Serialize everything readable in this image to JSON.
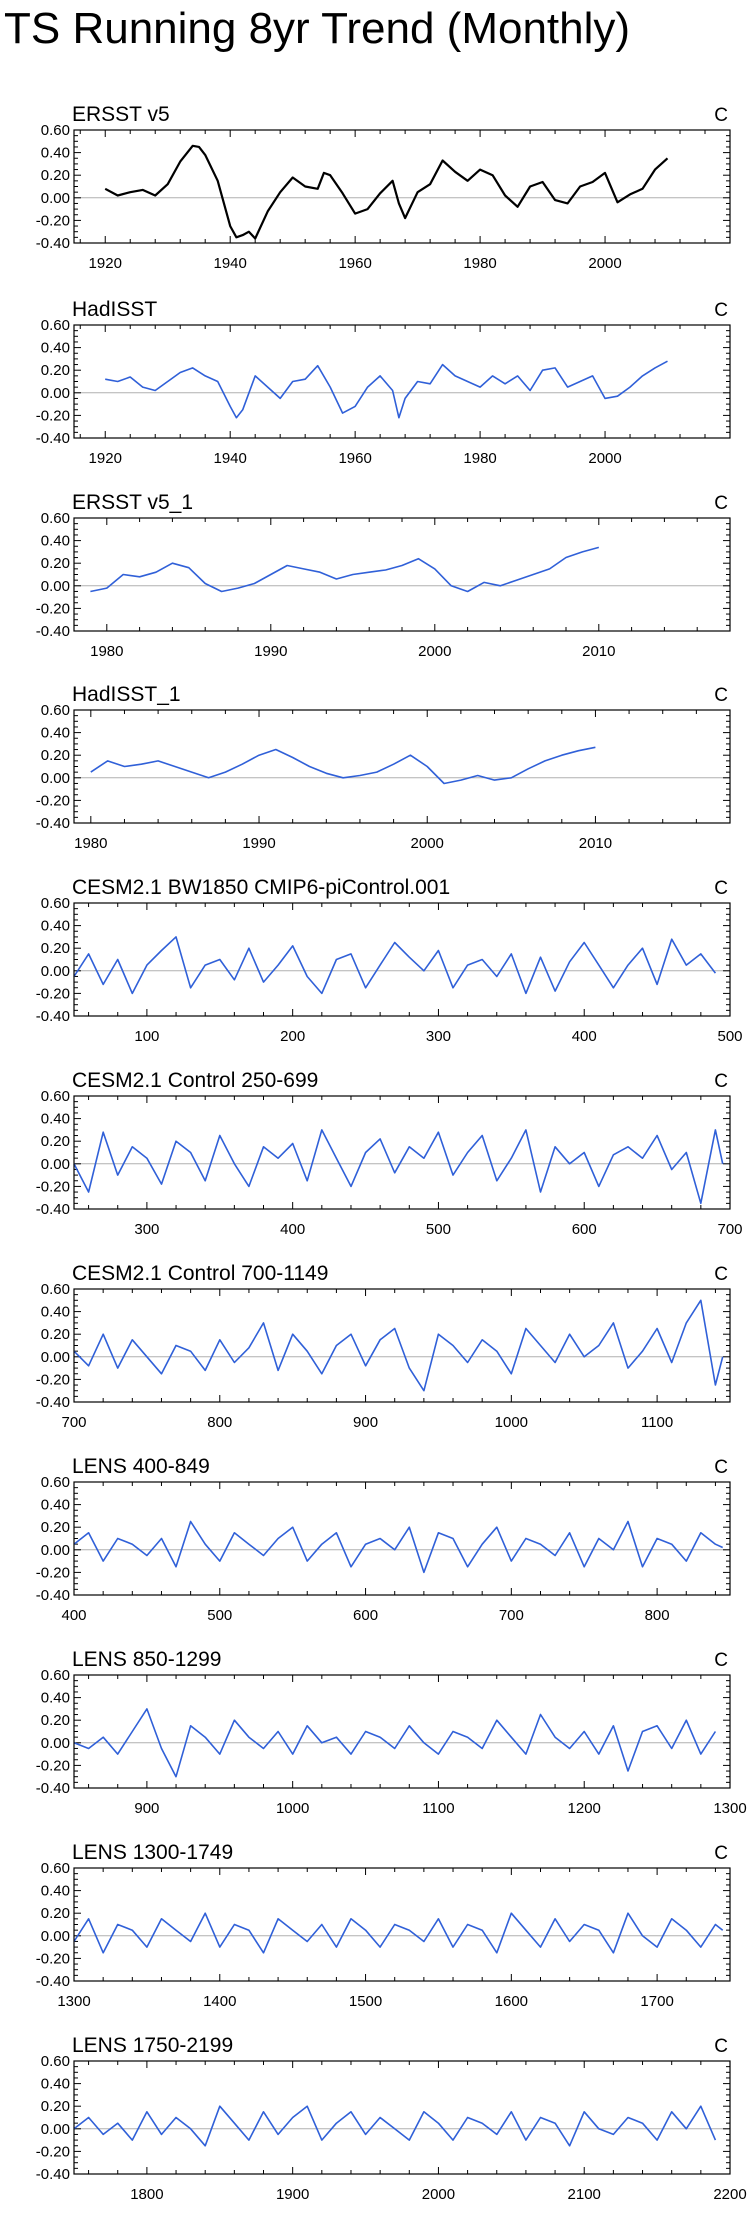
{
  "title": "TS Running 8yr Trend (Monthly)",
  "chart_data": [
    {
      "type": "line",
      "title": "ERSST v5",
      "units": "C",
      "color": "#000000",
      "xlim": [
        1915,
        2020
      ],
      "ylim": [
        -0.4,
        0.6
      ],
      "yticks": [
        "0.60",
        "0.40",
        "0.20",
        "0.00",
        "-0.20",
        "-0.40"
      ],
      "xticks": [
        1920,
        1940,
        1960,
        1980,
        2000
      ],
      "x": [
        1920,
        1922,
        1924,
        1926,
        1928,
        1930,
        1932,
        1934,
        1935,
        1936,
        1938,
        1940,
        1941,
        1942,
        1943,
        1944,
        1946,
        1948,
        1950,
        1952,
        1954,
        1955,
        1956,
        1958,
        1960,
        1962,
        1964,
        1966,
        1967,
        1968,
        1970,
        1972,
        1974,
        1976,
        1978,
        1980,
        1982,
        1984,
        1986,
        1988,
        1990,
        1992,
        1994,
        1996,
        1998,
        2000,
        2002,
        2004,
        2006,
        2008,
        2010
      ],
      "values": [
        0.08,
        0.02,
        0.05,
        0.07,
        0.02,
        0.12,
        0.32,
        0.46,
        0.45,
        0.38,
        0.15,
        -0.25,
        -0.35,
        -0.33,
        -0.3,
        -0.36,
        -0.12,
        0.05,
        0.18,
        0.1,
        0.08,
        0.22,
        0.2,
        0.04,
        -0.14,
        -0.1,
        0.04,
        0.15,
        -0.05,
        -0.18,
        0.05,
        0.12,
        0.33,
        0.23,
        0.15,
        0.25,
        0.2,
        0.02,
        -0.08,
        0.1,
        0.14,
        -0.02,
        -0.05,
        0.1,
        0.14,
        0.22,
        -0.04,
        0.03,
        0.08,
        0.25,
        0.35
      ]
    },
    {
      "type": "line",
      "title": "HadISST",
      "units": "C",
      "color": "#3060d8",
      "xlim": [
        1915,
        2020
      ],
      "ylim": [
        -0.4,
        0.6
      ],
      "yticks": [
        "0.60",
        "0.40",
        "0.20",
        "0.00",
        "-0.20",
        "-0.40"
      ],
      "xticks": [
        1920,
        1940,
        1960,
        1980,
        2000
      ],
      "x": [
        1920,
        1922,
        1924,
        1926,
        1928,
        1930,
        1932,
        1934,
        1936,
        1938,
        1940,
        1941,
        1942,
        1944,
        1946,
        1948,
        1950,
        1952,
        1954,
        1956,
        1958,
        1960,
        1962,
        1964,
        1966,
        1967,
        1968,
        1970,
        1972,
        1974,
        1976,
        1978,
        1980,
        1982,
        1984,
        1986,
        1988,
        1990,
        1992,
        1994,
        1996,
        1998,
        2000,
        2002,
        2004,
        2006,
        2008,
        2010
      ],
      "values": [
        0.12,
        0.1,
        0.14,
        0.05,
        0.02,
        0.1,
        0.18,
        0.22,
        0.15,
        0.1,
        -0.12,
        -0.22,
        -0.15,
        0.15,
        0.05,
        -0.05,
        0.1,
        0.12,
        0.24,
        0.05,
        -0.18,
        -0.12,
        0.05,
        0.15,
        0.02,
        -0.22,
        -0.05,
        0.1,
        0.08,
        0.25,
        0.15,
        0.1,
        0.05,
        0.15,
        0.08,
        0.15,
        0.02,
        0.2,
        0.22,
        0.05,
        0.1,
        0.15,
        -0.05,
        -0.03,
        0.05,
        0.15,
        0.22,
        0.28
      ]
    },
    {
      "type": "line",
      "title": "ERSST v5_1",
      "units": "C",
      "color": "#3060d8",
      "xlim": [
        1978,
        2018
      ],
      "ylim": [
        -0.4,
        0.6
      ],
      "yticks": [
        "0.60",
        "0.40",
        "0.20",
        "0.00",
        "-0.20",
        "-0.40"
      ],
      "xticks": [
        1980,
        1990,
        2000,
        2010
      ],
      "x": [
        1979,
        1980,
        1981,
        1982,
        1983,
        1984,
        1985,
        1986,
        1987,
        1988,
        1989,
        1990,
        1991,
        1992,
        1993,
        1994,
        1995,
        1996,
        1997,
        1998,
        1999,
        2000,
        2001,
        2002,
        2003,
        2004,
        2005,
        2006,
        2007,
        2008,
        2009,
        2010
      ],
      "values": [
        -0.05,
        -0.02,
        0.1,
        0.08,
        0.12,
        0.2,
        0.16,
        0.02,
        -0.05,
        -0.02,
        0.02,
        0.1,
        0.18,
        0.15,
        0.12,
        0.06,
        0.1,
        0.12,
        0.14,
        0.18,
        0.24,
        0.15,
        0.0,
        -0.05,
        0.03,
        0.0,
        0.05,
        0.1,
        0.15,
        0.25,
        0.3,
        0.34
      ]
    },
    {
      "type": "line",
      "title": "HadISST_1",
      "units": "C",
      "color": "#3060d8",
      "xlim": [
        1979,
        2018
      ],
      "ylim": [
        -0.4,
        0.6
      ],
      "yticks": [
        "0.60",
        "0.40",
        "0.20",
        "0.00",
        "-0.20",
        "-0.40"
      ],
      "xticks": [
        1980,
        1990,
        2000,
        2010
      ],
      "x": [
        1980,
        1981,
        1982,
        1983,
        1984,
        1985,
        1986,
        1987,
        1988,
        1989,
        1990,
        1991,
        1992,
        1993,
        1994,
        1995,
        1996,
        1997,
        1998,
        1999,
        2000,
        2001,
        2002,
        2003,
        2004,
        2005,
        2006,
        2007,
        2008,
        2009,
        2010
      ],
      "values": [
        0.05,
        0.15,
        0.1,
        0.12,
        0.15,
        0.1,
        0.05,
        0.0,
        0.05,
        0.12,
        0.2,
        0.25,
        0.18,
        0.1,
        0.04,
        0.0,
        0.02,
        0.05,
        0.12,
        0.2,
        0.1,
        -0.05,
        -0.02,
        0.02,
        -0.02,
        0.0,
        0.08,
        0.15,
        0.2,
        0.24,
        0.27
      ]
    },
    {
      "type": "line",
      "title": "CESM2.1 BW1850 CMIP6-piControl.001",
      "units": "C",
      "color": "#3060d8",
      "xlim": [
        50,
        500
      ],
      "ylim": [
        -0.4,
        0.6
      ],
      "yticks": [
        "0.60",
        "0.40",
        "0.20",
        "0.00",
        "-0.20",
        "-0.40"
      ],
      "xticks": [
        100,
        200,
        300,
        400,
        500
      ],
      "x": [
        50,
        60,
        70,
        80,
        90,
        100,
        110,
        120,
        130,
        140,
        150,
        160,
        170,
        180,
        190,
        200,
        210,
        220,
        230,
        240,
        250,
        260,
        270,
        280,
        290,
        300,
        310,
        320,
        330,
        340,
        350,
        360,
        370,
        380,
        390,
        400,
        410,
        420,
        430,
        440,
        450,
        460,
        470,
        480,
        490
      ],
      "values": [
        -0.05,
        0.15,
        -0.12,
        0.1,
        -0.2,
        0.05,
        0.18,
        0.3,
        -0.15,
        0.05,
        0.1,
        -0.08,
        0.2,
        -0.1,
        0.05,
        0.22,
        -0.05,
        -0.2,
        0.1,
        0.15,
        -0.15,
        0.05,
        0.25,
        0.12,
        0.0,
        0.18,
        -0.15,
        0.05,
        0.1,
        -0.05,
        0.15,
        -0.2,
        0.12,
        -0.18,
        0.08,
        0.25,
        0.05,
        -0.15,
        0.05,
        0.2,
        -0.12,
        0.28,
        0.05,
        0.15,
        -0.02
      ]
    },
    {
      "type": "line",
      "title": "CESM2.1 Control 250-699",
      "units": "C",
      "color": "#3060d8",
      "xlim": [
        250,
        700
      ],
      "ylim": [
        -0.4,
        0.6
      ],
      "yticks": [
        "0.60",
        "0.40",
        "0.20",
        "0.00",
        "-0.20",
        "-0.40"
      ],
      "xticks": [
        300,
        400,
        500,
        600,
        700
      ],
      "x": [
        250,
        260,
        270,
        280,
        290,
        300,
        310,
        320,
        330,
        340,
        350,
        360,
        370,
        380,
        390,
        400,
        410,
        420,
        430,
        440,
        450,
        460,
        470,
        480,
        490,
        500,
        510,
        520,
        530,
        540,
        550,
        560,
        570,
        580,
        590,
        600,
        610,
        620,
        630,
        640,
        650,
        660,
        670,
        680,
        690,
        695
      ],
      "values": [
        0.0,
        -0.25,
        0.28,
        -0.1,
        0.15,
        0.05,
        -0.18,
        0.2,
        0.1,
        -0.15,
        0.25,
        0.0,
        -0.2,
        0.15,
        0.05,
        0.18,
        -0.15,
        0.3,
        0.05,
        -0.2,
        0.1,
        0.22,
        -0.08,
        0.15,
        0.05,
        0.28,
        -0.1,
        0.1,
        0.25,
        -0.15,
        0.05,
        0.3,
        -0.25,
        0.15,
        0.0,
        0.1,
        -0.2,
        0.08,
        0.15,
        0.05,
        0.25,
        -0.05,
        0.1,
        -0.35,
        0.3,
        0.0
      ]
    },
    {
      "type": "line",
      "title": "CESM2.1 Control 700-1149",
      "units": "C",
      "color": "#3060d8",
      "xlim": [
        700,
        1150
      ],
      "ylim": [
        -0.4,
        0.6
      ],
      "yticks": [
        "0.60",
        "0.40",
        "0.20",
        "0.00",
        "-0.20",
        "-0.40"
      ],
      "xticks": [
        700,
        800,
        900,
        1000,
        1100
      ],
      "x": [
        700,
        710,
        720,
        730,
        740,
        750,
        760,
        770,
        780,
        790,
        800,
        810,
        820,
        830,
        840,
        850,
        860,
        870,
        880,
        890,
        900,
        910,
        920,
        930,
        940,
        950,
        960,
        970,
        980,
        990,
        1000,
        1010,
        1020,
        1030,
        1040,
        1050,
        1060,
        1070,
        1080,
        1090,
        1100,
        1110,
        1120,
        1130,
        1140,
        1145
      ],
      "values": [
        0.05,
        -0.08,
        0.2,
        -0.1,
        0.15,
        0.0,
        -0.15,
        0.1,
        0.05,
        -0.12,
        0.15,
        -0.05,
        0.08,
        0.3,
        -0.12,
        0.2,
        0.05,
        -0.15,
        0.1,
        0.2,
        -0.08,
        0.15,
        0.25,
        -0.1,
        -0.3,
        0.2,
        0.1,
        -0.05,
        0.15,
        0.05,
        -0.15,
        0.25,
        0.1,
        -0.05,
        0.2,
        0.0,
        0.1,
        0.3,
        -0.1,
        0.05,
        0.25,
        -0.05,
        0.3,
        0.5,
        -0.25,
        0.0
      ]
    },
    {
      "type": "line",
      "title": "LENS 400-849",
      "units": "C",
      "color": "#3060d8",
      "xlim": [
        400,
        850
      ],
      "ylim": [
        -0.4,
        0.6
      ],
      "yticks": [
        "0.60",
        "0.40",
        "0.20",
        "0.00",
        "-0.20",
        "-0.40"
      ],
      "xticks": [
        400,
        500,
        600,
        700,
        800
      ],
      "x": [
        400,
        410,
        420,
        430,
        440,
        450,
        460,
        470,
        480,
        490,
        500,
        510,
        520,
        530,
        540,
        550,
        560,
        570,
        580,
        590,
        600,
        610,
        620,
        630,
        640,
        650,
        660,
        670,
        680,
        690,
        700,
        710,
        720,
        730,
        740,
        750,
        760,
        770,
        780,
        790,
        800,
        810,
        820,
        830,
        840,
        845
      ],
      "values": [
        0.05,
        0.15,
        -0.1,
        0.1,
        0.05,
        -0.05,
        0.1,
        -0.15,
        0.25,
        0.05,
        -0.1,
        0.15,
        0.05,
        -0.05,
        0.1,
        0.2,
        -0.1,
        0.05,
        0.15,
        -0.15,
        0.05,
        0.1,
        0.0,
        0.2,
        -0.2,
        0.15,
        0.1,
        -0.15,
        0.05,
        0.2,
        -0.1,
        0.1,
        0.05,
        -0.05,
        0.15,
        -0.15,
        0.1,
        0.0,
        0.25,
        -0.15,
        0.1,
        0.05,
        -0.1,
        0.15,
        0.05,
        0.02
      ]
    },
    {
      "type": "line",
      "title": "LENS 850-1299",
      "units": "C",
      "color": "#3060d8",
      "xlim": [
        850,
        1300
      ],
      "ylim": [
        -0.4,
        0.6
      ],
      "yticks": [
        "0.60",
        "0.40",
        "0.20",
        "0.00",
        "-0.20",
        "-0.40"
      ],
      "xticks": [
        900,
        1000,
        1100,
        1200,
        1300
      ],
      "x": [
        850,
        860,
        870,
        880,
        890,
        900,
        910,
        920,
        930,
        940,
        950,
        960,
        970,
        980,
        990,
        1000,
        1010,
        1020,
        1030,
        1040,
        1050,
        1060,
        1070,
        1080,
        1090,
        1100,
        1110,
        1120,
        1130,
        1140,
        1150,
        1160,
        1170,
        1180,
        1190,
        1200,
        1210,
        1220,
        1230,
        1240,
        1250,
        1260,
        1270,
        1280,
        1290
      ],
      "values": [
        0.0,
        -0.05,
        0.05,
        -0.1,
        0.1,
        0.3,
        -0.05,
        -0.3,
        0.15,
        0.05,
        -0.1,
        0.2,
        0.05,
        -0.05,
        0.1,
        -0.1,
        0.15,
        0.0,
        0.05,
        -0.1,
        0.1,
        0.05,
        -0.05,
        0.15,
        0.0,
        -0.1,
        0.1,
        0.05,
        -0.05,
        0.2,
        0.05,
        -0.1,
        0.25,
        0.05,
        -0.05,
        0.1,
        -0.1,
        0.15,
        -0.25,
        0.1,
        0.15,
        -0.05,
        0.2,
        -0.1,
        0.1
      ]
    },
    {
      "type": "line",
      "title": "LENS 1300-1749",
      "units": "C",
      "color": "#3060d8",
      "xlim": [
        1300,
        1750
      ],
      "ylim": [
        -0.4,
        0.6
      ],
      "yticks": [
        "0.60",
        "0.40",
        "0.20",
        "0.00",
        "-0.20",
        "-0.40"
      ],
      "xticks": [
        1300,
        1400,
        1500,
        1600,
        1700
      ],
      "x": [
        1300,
        1310,
        1320,
        1330,
        1340,
        1350,
        1360,
        1370,
        1380,
        1390,
        1400,
        1410,
        1420,
        1430,
        1440,
        1450,
        1460,
        1470,
        1480,
        1490,
        1500,
        1510,
        1520,
        1530,
        1540,
        1550,
        1560,
        1570,
        1580,
        1590,
        1600,
        1610,
        1620,
        1630,
        1640,
        1650,
        1660,
        1670,
        1680,
        1690,
        1700,
        1710,
        1720,
        1730,
        1740,
        1745
      ],
      "values": [
        -0.05,
        0.15,
        -0.15,
        0.1,
        0.05,
        -0.1,
        0.15,
        0.05,
        -0.05,
        0.2,
        -0.1,
        0.1,
        0.05,
        -0.15,
        0.15,
        0.05,
        -0.05,
        0.1,
        -0.1,
        0.15,
        0.05,
        -0.1,
        0.1,
        0.05,
        -0.05,
        0.15,
        -0.1,
        0.1,
        0.05,
        -0.15,
        0.2,
        0.05,
        -0.1,
        0.15,
        -0.05,
        0.1,
        0.05,
        -0.15,
        0.2,
        0.0,
        -0.1,
        0.15,
        0.05,
        -0.1,
        0.1,
        0.05
      ]
    },
    {
      "type": "line",
      "title": "LENS 1750-2199",
      "units": "C",
      "color": "#3060d8",
      "xlim": [
        1750,
        2200
      ],
      "ylim": [
        -0.4,
        0.6
      ],
      "yticks": [
        "0.60",
        "0.40",
        "0.20",
        "0.00",
        "-0.20",
        "-0.40"
      ],
      "xticks": [
        1800,
        1900,
        2000,
        2100,
        2200
      ],
      "x": [
        1750,
        1760,
        1770,
        1780,
        1790,
        1800,
        1810,
        1820,
        1830,
        1840,
        1850,
        1860,
        1870,
        1880,
        1890,
        1900,
        1910,
        1920,
        1930,
        1940,
        1950,
        1960,
        1970,
        1980,
        1990,
        2000,
        2010,
        2020,
        2030,
        2040,
        2050,
        2060,
        2070,
        2080,
        2090,
        2100,
        2110,
        2120,
        2130,
        2140,
        2150,
        2160,
        2170,
        2180,
        2190
      ],
      "values": [
        0.0,
        0.1,
        -0.05,
        0.05,
        -0.1,
        0.15,
        -0.05,
        0.1,
        0.0,
        -0.15,
        0.2,
        0.05,
        -0.1,
        0.15,
        -0.05,
        0.1,
        0.2,
        -0.1,
        0.05,
        0.15,
        -0.05,
        0.1,
        0.0,
        -0.1,
        0.15,
        0.05,
        -0.1,
        0.1,
        0.05,
        -0.05,
        0.15,
        -0.1,
        0.1,
        0.05,
        -0.15,
        0.15,
        0.0,
        -0.05,
        0.1,
        0.05,
        -0.1,
        0.15,
        0.0,
        0.2,
        -0.1
      ]
    }
  ]
}
